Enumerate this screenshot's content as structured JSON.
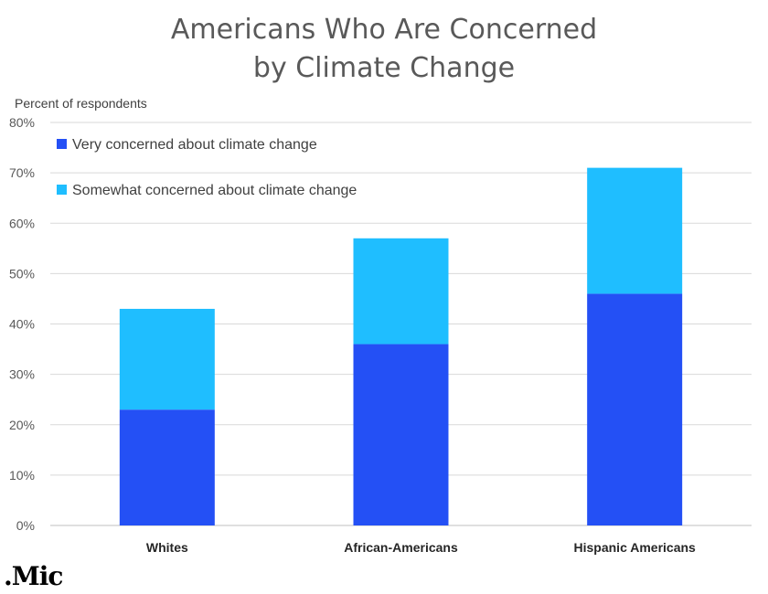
{
  "chart_data": {
    "type": "bar",
    "stacked": true,
    "title_lines": [
      "Americans Who Are Concerned",
      "by Climate Change"
    ],
    "ylabel": "Percent of respondents",
    "xlabel": "",
    "categories": [
      "Whites",
      "African-Americans",
      "Hispanic Americans"
    ],
    "series": [
      {
        "name": "Very concerned about climate change",
        "color": "#2450f5",
        "values": [
          23,
          36,
          46
        ]
      },
      {
        "name": "Somewhat concerned about climate change",
        "color": "#1fbeff",
        "values": [
          20,
          21,
          25
        ]
      }
    ],
    "ylim": [
      0,
      80
    ],
    "yticks": [
      "0%",
      "10%",
      "20%",
      "30%",
      "40%",
      "50%",
      "60%",
      "70%",
      "80%"
    ],
    "grid": true,
    "legend_position": "top-left"
  },
  "brand": {
    "logo_text": ".Mic"
  }
}
